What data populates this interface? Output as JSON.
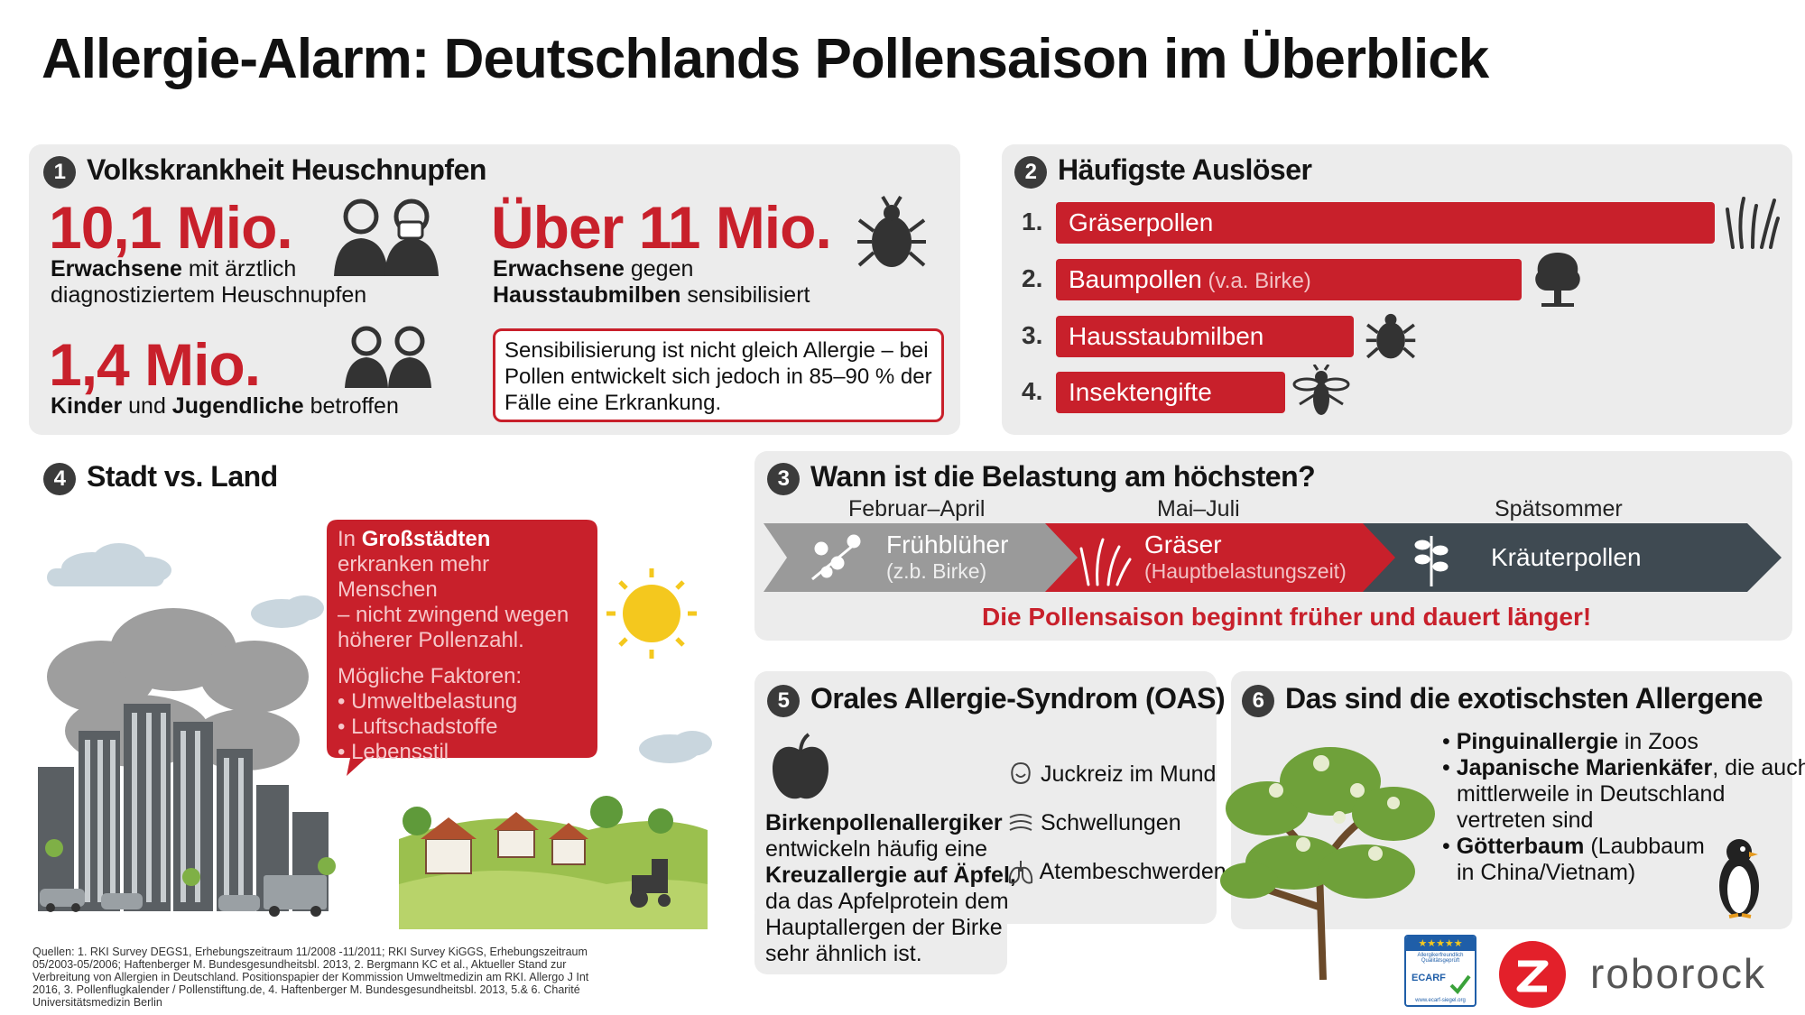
{
  "title": "Allergie-Alarm: Deutschlands Pollensaison im Überblick",
  "s1": {
    "num": "1",
    "title": "Volkskrankheit Heuschnupfen",
    "stat1": {
      "value": "10,1 Mio.",
      "bold": "Erwachsene",
      "rest1": " mit ärztlich",
      "line2": "diagnostiziertem Heuschnupfen"
    },
    "stat2": {
      "value": "1,4 Mio.",
      "bold1": "Kinder",
      "mid": " und ",
      "bold2": "Jugendliche",
      "rest": " betroffen"
    },
    "stat3": {
      "value": "Über 11 Mio.",
      "bold1": "Erwachsene",
      "rest1": " gegen",
      "bold2": "Hausstaubmilben",
      "rest2": " sensibilisiert"
    },
    "box": [
      "Sensibilisierung ist nicht gleich Allergie – bei",
      "Pollen entwickelt sich jedoch in 85–90 % der",
      "Fälle eine Erkrankung."
    ]
  },
  "s2": {
    "num": "2",
    "title": "Häufigste Auslöser",
    "items": [
      {
        "rank": "1.",
        "label": "Gräserpollen",
        "sub": "",
        "icon": "grass-icon"
      },
      {
        "rank": "2.",
        "label": "Baumpollen",
        "sub": " (v.a. Birke)",
        "icon": "tree-icon"
      },
      {
        "rank": "3.",
        "label": "Hausstaubmilben",
        "sub": "",
        "icon": "mite-icon"
      },
      {
        "rank": "4.",
        "label": "Insektengifte",
        "sub": "",
        "icon": "wasp-icon"
      }
    ]
  },
  "s3": {
    "num": "3",
    "title": "Wann ist die Belastung am höchsten?",
    "periods": [
      "Februar–April",
      "Mai–Juli",
      "Spätsommer"
    ],
    "stages": [
      {
        "label": "Frühblüher",
        "sub": "(z.b. Birke)"
      },
      {
        "label": "Gräser",
        "sub": "(Hauptbelastungszeit)"
      },
      {
        "label": "Kräuterpollen",
        "sub": ""
      }
    ],
    "note": "Die Pollensaison beginnt früher und dauert länger!"
  },
  "s4": {
    "num": "4",
    "title": "Stadt vs. Land",
    "bubble": {
      "l1a": "In ",
      "l1b": "Großstädten",
      "lines": [
        "erkranken mehr Menschen",
        "– nicht zwingend wegen",
        "höherer Pollenzahl."
      ],
      "factors_title": "Mögliche Faktoren:",
      "factors": [
        "• Umweltbelastung",
        "• Luftschadstoffe",
        "• Lebensstil"
      ]
    }
  },
  "s5": {
    "num": "5",
    "title": "Orales Allergie-Syndrom (OAS)",
    "text": {
      "b1": "Birkenpollenallergiker",
      "l2": "entwickeln häufig eine",
      "b2": "Kreuzallergie auf Äpfel,",
      "l4": "da das Apfelprotein dem",
      "l5": "Hauptallergen der Birke",
      "l6": "sehr ähnlich ist."
    },
    "symptoms": [
      "Juckreiz im Mund",
      "Schwellungen",
      "Atembeschwerden"
    ]
  },
  "s6": {
    "num": "6",
    "title": "Das sind die exotischsten Allergene",
    "items": [
      {
        "bold": "Pinguinallergie",
        "rest": " in Zoos",
        "cont": []
      },
      {
        "bold": "Japanische Marienkäfer",
        "rest": ", die auch",
        "cont": [
          "mittlerweile in Deutschland",
          "vertreten sind"
        ]
      },
      {
        "bold": "Götterbaum",
        "rest": " (Laubbaum",
        "cont": [
          "in China/Vietnam)"
        ]
      }
    ]
  },
  "sources": [
    "Quellen: 1. RKI Survey DEGS1, Erhebungszeitraum 11/2008 -11/2011; RKI Survey KiGGS, Erhebungszeitraum",
    "05/2003-05/2006; Haftenberger M. Bundesgesundheitsbl. 2013, 2. Bergmann KC et al., Aktueller Stand zur",
    "Verbreitung von Allergien in Deutschland. Positionspapier der Kommission Umweltmedizin am RKI. Allergo J Int",
    "2016, 3. Pollenflugkalender / Pollenstiftung.de, 4. Haftenberger M. Bundesgesundheitsbl. 2013, 5.& 6. Charité",
    "Universitätsmedizin Berlin"
  ],
  "ecarf": {
    "line1": "Allergikerfreundlich",
    "line2": "Qualitätsgeprüft",
    "name": "ECARF",
    "url": "www.ecarf-siegel.org"
  },
  "brand": "roborock",
  "colors": {
    "accent": "#c8202b",
    "panel": "#ececec",
    "dark": "#3b3b3b"
  }
}
